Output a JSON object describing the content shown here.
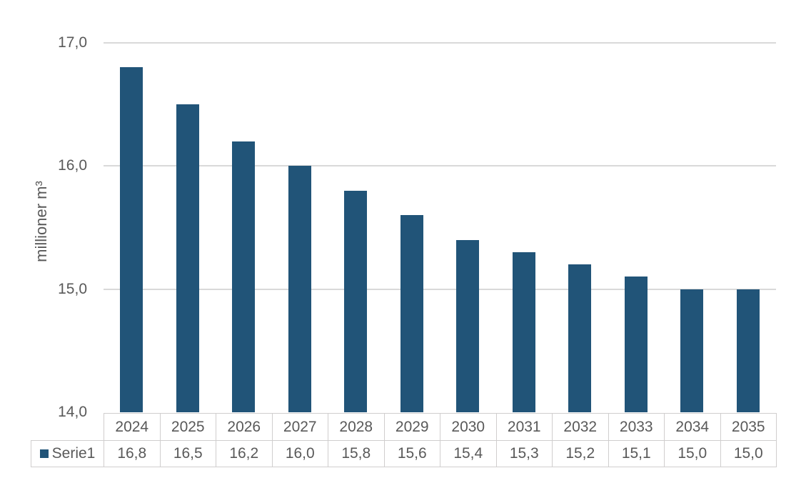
{
  "chart_data": {
    "type": "bar",
    "title": "",
    "xlabel": "",
    "ylabel": "millioner m³",
    "ylim": [
      14,
      17
    ],
    "grid": true,
    "legend_position": "data-table-left",
    "categories": [
      "2024",
      "2025",
      "2026",
      "2027",
      "2028",
      "2029",
      "2030",
      "2031",
      "2032",
      "2033",
      "2034",
      "2035"
    ],
    "series": [
      {
        "name": "Serie1",
        "values": [
          16.8,
          16.5,
          16.2,
          16.0,
          15.8,
          15.6,
          15.4,
          15.3,
          15.2,
          15.1,
          15.0,
          15.0
        ],
        "display_values": [
          "16,8",
          "16,5",
          "16,2",
          "16,0",
          "15,8",
          "15,6",
          "15,4",
          "15,3",
          "15,2",
          "15,1",
          "15,0",
          "15,0"
        ]
      }
    ],
    "y_ticks": [
      {
        "value": 17,
        "label": "17,0"
      },
      {
        "value": 16,
        "label": "16,0"
      },
      {
        "value": 15,
        "label": "15,0"
      },
      {
        "value": 14,
        "label": "14,0"
      }
    ]
  },
  "colors": {
    "bar": "#215478",
    "gridline": "#d9d9d9",
    "table_border": "#d0cece",
    "text": "#595959",
    "background": "#ffffff"
  }
}
